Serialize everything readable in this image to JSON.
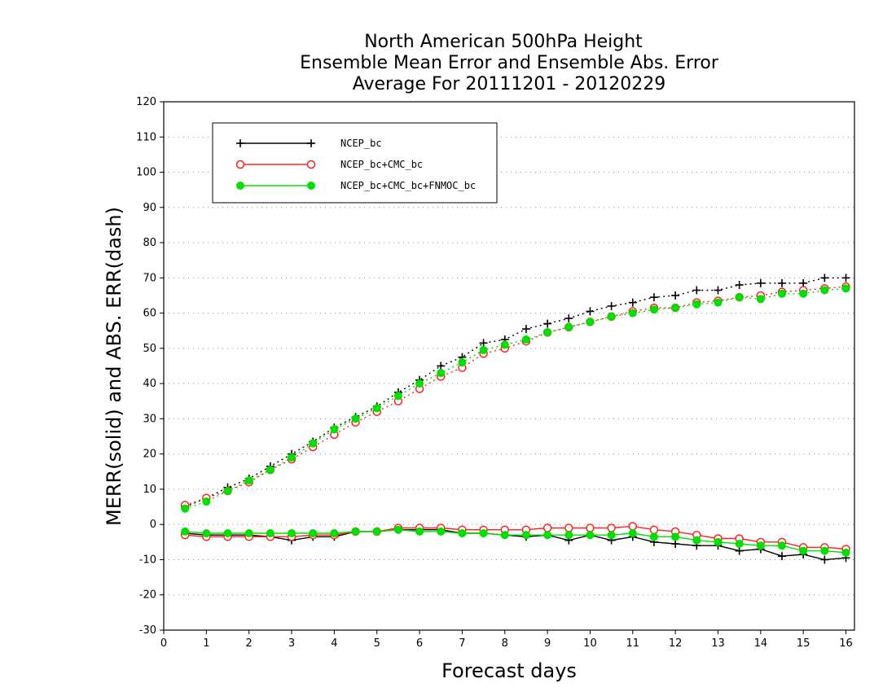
{
  "chart_data": {
    "type": "line",
    "title": [
      "North American 500hPa Height",
      "Ensemble Mean Error and Ensemble Abs. Error",
      "Average For 20111201 - 20120229"
    ],
    "xlabel": "Forecast days",
    "ylabel": "MERR(solid) and ABS. ERR(dash)",
    "xlim": [
      0,
      16.2
    ],
    "ylim": [
      -30,
      120
    ],
    "xticks": [
      "0",
      "1",
      "2",
      "3",
      "4",
      "5",
      "6",
      "7",
      "8",
      "9",
      "10",
      "11",
      "12",
      "13",
      "14",
      "15",
      "16"
    ],
    "yticks": [
      "-30",
      "-20",
      "-10",
      "0",
      "10",
      "20",
      "30",
      "40",
      "50",
      "60",
      "70",
      "80",
      "90",
      "100",
      "110",
      "120"
    ],
    "grid": true,
    "legend_position": "top-left",
    "x": [
      0.5,
      1,
      1.5,
      2,
      2.5,
      3,
      3.5,
      4,
      4.5,
      5,
      5.5,
      6,
      6.5,
      7,
      7.5,
      8,
      8.5,
      9,
      9.5,
      10,
      10.5,
      11,
      11.5,
      12,
      12.5,
      13,
      13.5,
      14,
      14.5,
      15,
      15.5,
      16
    ],
    "series": [
      {
        "name": "NCEP_bc",
        "color": "#000000",
        "marker": "plus",
        "merr": [
          -2.5,
          -3,
          -3,
          -3,
          -3.5,
          -4.5,
          -3.5,
          -3.5,
          -2,
          -2,
          -1.5,
          -1.5,
          -1.5,
          -2.5,
          -2.5,
          -3,
          -3.5,
          -3,
          -4.5,
          -3,
          -4.5,
          -3.5,
          -5,
          -5.5,
          -6,
          -6,
          -7.5,
          -7,
          -9,
          -8.5,
          -10,
          -9.5
        ],
        "abs_err": [
          5,
          7.5,
          10.5,
          13,
          16.5,
          20,
          23.5,
          27.5,
          30.5,
          33.5,
          37.5,
          41,
          45,
          47.5,
          51.5,
          52.5,
          55.5,
          57,
          58.5,
          60.5,
          62,
          63,
          64.5,
          65,
          66.5,
          66.5,
          68,
          68.5,
          68.5,
          68.5,
          70,
          70
        ]
      },
      {
        "name": "NCEP_bc+CMC_bc",
        "color": "#ff2020",
        "marker": "open-circle",
        "merr": [
          -3,
          -3.5,
          -3.5,
          -3.5,
          -3.5,
          -3.5,
          -3,
          -3,
          -2,
          -2,
          -1,
          -1,
          -1,
          -1.5,
          -1.5,
          -1.5,
          -1.5,
          -1,
          -1,
          -1,
          -1,
          -0.5,
          -1.5,
          -2,
          -3,
          -4,
          -4,
          -5,
          -5,
          -6.5,
          -6.5,
          -7
        ],
        "abs_err": [
          5.5,
          7.5,
          9.5,
          12,
          15.5,
          18.5,
          22,
          25.5,
          29,
          32,
          35,
          38.5,
          42,
          44.5,
          48.5,
          50,
          52,
          54.5,
          56,
          57.5,
          59,
          60.5,
          61.5,
          61.5,
          63,
          63.5,
          64.5,
          65,
          66,
          66.5,
          67,
          67.5
        ]
      },
      {
        "name": "NCEP_bc+CMC_bc+FNMOC_bc",
        "color": "#00e000",
        "marker": "filled-circle",
        "merr": [
          -2,
          -2.5,
          -2.5,
          -2.5,
          -2.5,
          -2.5,
          -2.5,
          -2.5,
          -2,
          -2,
          -1.5,
          -2,
          -2,
          -2.5,
          -2.5,
          -3,
          -3,
          -3,
          -3,
          -3,
          -3,
          -2.5,
          -3.5,
          -3.5,
          -4.5,
          -5,
          -5.5,
          -6,
          -6,
          -7.5,
          -7.5,
          -8
        ],
        "abs_err": [
          4.5,
          6.5,
          9.5,
          12.5,
          15.5,
          19,
          23,
          27,
          30,
          33,
          36.5,
          40,
          43,
          46,
          49.5,
          51,
          52.5,
          54.5,
          56,
          57.5,
          59,
          60,
          61,
          61.5,
          62.5,
          63,
          64.5,
          64,
          65.5,
          65.5,
          66.5,
          67
        ]
      }
    ]
  }
}
